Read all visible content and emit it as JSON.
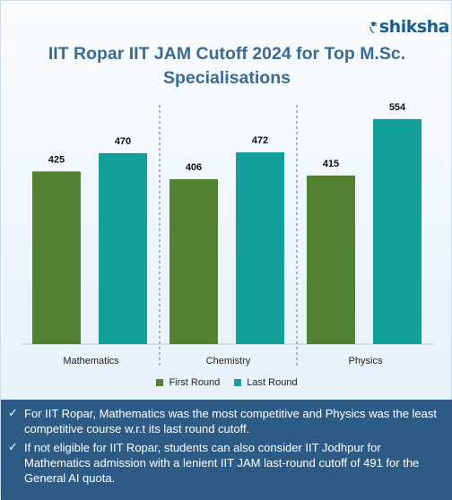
{
  "brand": {
    "name": "shiksha",
    "icon": "graduation-cap-icon",
    "color": "#1a5d8f"
  },
  "title": "IIT Ropar IIT JAM Cutoff 2024 for Top M.Sc. Specialisations",
  "colors": {
    "first_round": "#548235",
    "last_round": "#14a09a",
    "notes_bg": "#2e5b85",
    "title": "#3a6b93"
  },
  "chart_data": {
    "type": "bar",
    "title": "IIT Ropar IIT JAM Cutoff 2024 for Top M.Sc. Specialisations",
    "categories": [
      "Mathematics",
      "Chemistry",
      "Physics"
    ],
    "series": [
      {
        "name": "First Round",
        "values": [
          425,
          406,
          415
        ],
        "color": "#548235"
      },
      {
        "name": "Last Round",
        "values": [
          470,
          472,
          554
        ],
        "color": "#14a09a"
      }
    ],
    "xlabel": "",
    "ylabel": "",
    "ylim": [
      0,
      600
    ],
    "grid": false,
    "legend": "bottom",
    "data_labels": true
  },
  "legend": {
    "first": "First Round",
    "last": "Last Round"
  },
  "notes": [
    "For IIT Ropar, Mathematics was the most competitive and Physics was the least competitive course w.r.t its last round cutoff.",
    "If not eligible for IIT Ropar, students can also consider IIT Jodhpur for Mathematics admission with a lenient IIT JAM last-round cutoff of 491 for the General AI quota."
  ]
}
